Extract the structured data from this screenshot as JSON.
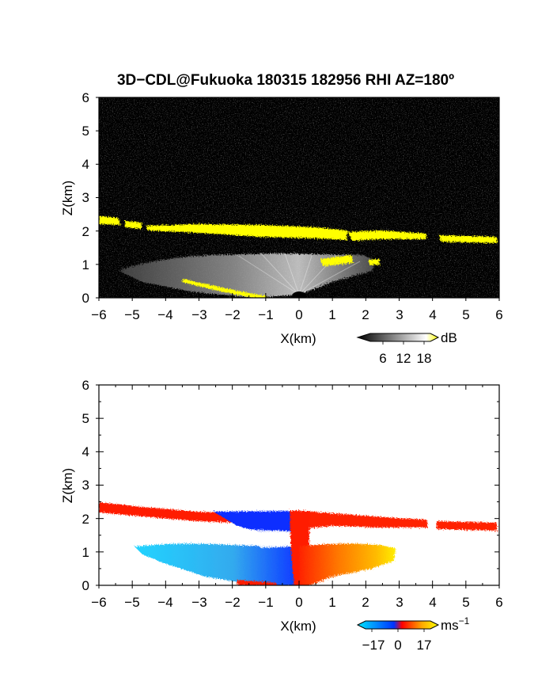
{
  "chart_data": [
    {
      "type": "heatmap",
      "title": "3D−CDL@Fukuoka 180315 182956 RHI AZ=180º",
      "xlabel": "X(km)",
      "ylabel": "Z(km)",
      "xlim": [
        -6,
        6
      ],
      "ylim": [
        0,
        6
      ],
      "x_ticks": [
        "−6",
        "−5",
        "−4",
        "−3",
        "−2",
        "−1",
        "0",
        "1",
        "2",
        "3",
        "4",
        "5",
        "6"
      ],
      "y_ticks": [
        "0",
        "1",
        "2",
        "3",
        "4",
        "5",
        "6"
      ],
      "background": "black",
      "colorbar": {
        "unit": "dB",
        "tick_labels": [
          "6",
          "12",
          "18"
        ],
        "colors": [
          "#000000",
          "#ffffff",
          "#ffff00"
        ]
      },
      "features": [
        {
          "name": "cloud base layer",
          "z_km_range": [
            1.7,
            2.4
          ],
          "x_km_range": [
            -6,
            6
          ],
          "color": "#ffff00"
        },
        {
          "name": "aerosol fan",
          "z_km_range": [
            0,
            1.1
          ],
          "x_km_range": [
            -5.5,
            2.5
          ],
          "color": "#bbbbbb"
        }
      ]
    },
    {
      "type": "heatmap",
      "xlabel": "X(km)",
      "ylabel": "Z(km)",
      "xlim": [
        -6,
        6
      ],
      "ylim": [
        0,
        6
      ],
      "x_ticks": [
        "−6",
        "−5",
        "−4",
        "−3",
        "−2",
        "−1",
        "0",
        "1",
        "2",
        "3",
        "4",
        "5",
        "6"
      ],
      "y_ticks": [
        "0",
        "1",
        "2",
        "3",
        "4",
        "5",
        "6"
      ],
      "background": "white",
      "colorbar": {
        "unit": "ms",
        "unit_exponent": "−1",
        "tick_labels": [
          "−17",
          "0",
          "17"
        ],
        "colors": [
          "#00e5ff",
          "#0033ff",
          "#ff0000",
          "#ffaa00",
          "#ffff00"
        ]
      },
      "features": [
        {
          "name": "approaching flow",
          "x_km_range": [
            -4.8,
            0
          ],
          "z_km_range": [
            0,
            1.2
          ],
          "color": "#22ccff"
        },
        {
          "name": "receding flow",
          "x_km_range": [
            0,
            3.2
          ],
          "z_km_range": [
            0,
            1.3
          ],
          "color": "#ff8800"
        },
        {
          "name": "upper layer",
          "x_km_range": [
            -6,
            6
          ],
          "z_km_range": [
            1.6,
            2.4
          ],
          "color": "#ff2200"
        }
      ]
    }
  ]
}
